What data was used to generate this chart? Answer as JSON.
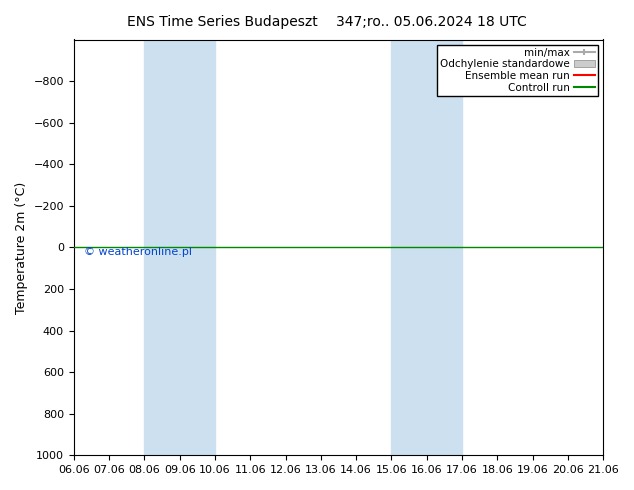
{
  "title_left": "ENS Time Series Budapeszt",
  "title_right": "347;ro.. 05.06.2024 18 UTC",
  "ylabel": "Temperature 2m (°C)",
  "ylim": [
    -1000,
    1000
  ],
  "yticks": [
    -800,
    -600,
    -400,
    -200,
    0,
    200,
    400,
    600,
    800,
    1000
  ],
  "xtick_labels": [
    "06.06",
    "07.06",
    "08.06",
    "09.06",
    "10.06",
    "11.06",
    "12.06",
    "13.06",
    "14.06",
    "15.06",
    "16.06",
    "17.06",
    "18.06",
    "19.06",
    "20.06",
    "21.06"
  ],
  "shaded_bands": [
    {
      "xstart": 2,
      "xend": 4,
      "color": "#cce0f0"
    },
    {
      "xstart": 9,
      "xend": 11,
      "color": "#cce0f0"
    }
  ],
  "horizontal_line_y": 0,
  "horizontal_line_color": "#008800",
  "watermark": "© weatheronline.pl",
  "watermark_color": "#0044cc",
  "legend_items": [
    {
      "label": "min/max",
      "color": "#aaaaaa"
    },
    {
      "label": "Odchylenie standardowe",
      "color": "#cccccc"
    },
    {
      "label": "Ensemble mean run",
      "color": "#ff0000"
    },
    {
      "label": "Controll run",
      "color": "#008800"
    }
  ],
  "background_color": "#ffffff",
  "title_fontsize": 10,
  "axis_fontsize": 9,
  "tick_fontsize": 8,
  "legend_fontsize": 7.5
}
